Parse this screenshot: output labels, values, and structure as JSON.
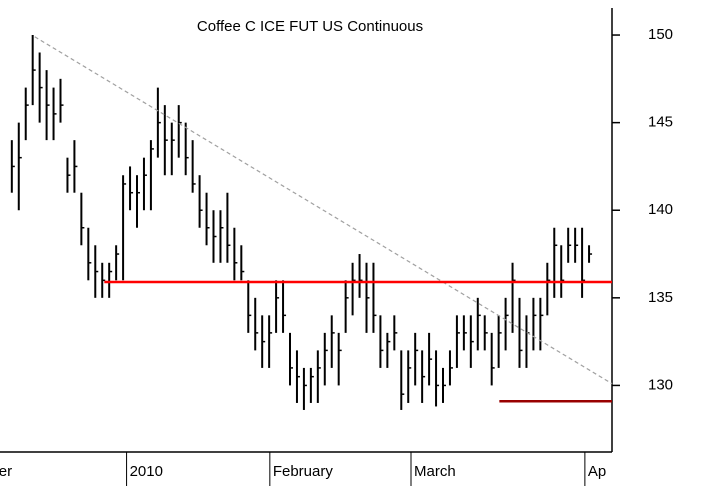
{
  "chart_data": {
    "type": "ohlc",
    "title": "Coffee C ICE FUT US Continuous",
    "xlim": [
      -1.7,
      86.3
    ],
    "ylim": [
      126.2,
      152
    ],
    "yticks": [
      130,
      135,
      140,
      145,
      150
    ],
    "xticks": [
      {
        "value": -6.5,
        "label": "ember"
      },
      {
        "value": 16.5,
        "label": "2010"
      },
      {
        "value": 37.1,
        "label": "February"
      },
      {
        "value": 57.4,
        "label": "March"
      },
      {
        "value": 82.4,
        "label": "Ap"
      }
    ],
    "series": [
      {
        "color": "#000000",
        "low": [
          141,
          140,
          144,
          146,
          145,
          144,
          144,
          145,
          141,
          141,
          138,
          136,
          135,
          135,
          135,
          136,
          136,
          140,
          139,
          140,
          140,
          143,
          142,
          142,
          143,
          142,
          141,
          139,
          138,
          137,
          137,
          137,
          136,
          136,
          133,
          132,
          131,
          131,
          133,
          133,
          130,
          129,
          128.6,
          129,
          129,
          130,
          131,
          130,
          133,
          134,
          135,
          133,
          133,
          131,
          131,
          132,
          128.6,
          129,
          130,
          129,
          130,
          128.8,
          129,
          130,
          131,
          132,
          131,
          132,
          132,
          130,
          131,
          132,
          133,
          131,
          131,
          132,
          132,
          134,
          135,
          135,
          137,
          137,
          135,
          137
        ],
        "high": [
          144,
          145,
          147,
          150,
          149,
          148,
          147,
          147.5,
          143,
          144,
          141,
          139,
          138,
          137,
          137,
          138,
          142,
          142.5,
          142,
          143,
          144,
          147,
          146,
          145,
          146,
          145,
          144,
          142,
          141,
          140,
          140,
          141,
          139,
          138,
          136,
          135,
          134,
          134,
          136,
          136,
          133,
          132,
          131,
          131,
          132,
          133,
          134,
          133,
          136,
          137,
          137.5,
          137,
          137,
          134,
          133,
          134,
          132,
          132,
          133,
          132,
          133,
          132,
          131,
          132,
          134,
          134,
          134,
          135,
          134,
          133,
          134,
          135,
          137,
          135,
          134,
          135,
          135,
          137,
          139,
          138,
          139,
          139,
          139,
          138
        ],
        "close": [
          142.5,
          143,
          146,
          148,
          147,
          146,
          145.5,
          146,
          142,
          142.5,
          139,
          137,
          136.5,
          136,
          136.5,
          137.5,
          141.5,
          141,
          141,
          142,
          143.5,
          145,
          144,
          144,
          145,
          143,
          141.5,
          140,
          139,
          138.5,
          139,
          138,
          137,
          136.5,
          134,
          133,
          132.5,
          133,
          135,
          134,
          131,
          130.5,
          130,
          130.5,
          131,
          132,
          133,
          132,
          135,
          136,
          136,
          135,
          134,
          132,
          132.5,
          133,
          129.5,
          131,
          132,
          130.5,
          131.5,
          130,
          130,
          131,
          133,
          133,
          132.5,
          134,
          133,
          131,
          133,
          134,
          136,
          132,
          133,
          134,
          134,
          136,
          138,
          136,
          138,
          138,
          136,
          137.5
        ]
      }
    ],
    "lines": [
      {
        "x": [
          3.3,
          86.3
        ],
        "y": [
          149.9,
          130.1
        ],
        "color": "#a0a0a0",
        "dashed": true
      },
      {
        "x": [
          13.3,
          86.3
        ],
        "y": [
          135.9,
          135.9
        ],
        "color": "#ff0000",
        "dashed": false
      },
      {
        "x": [
          70.1,
          86.3
        ],
        "y": [
          129.1,
          129.1
        ],
        "color": "#990000",
        "dashed": false
      }
    ]
  }
}
